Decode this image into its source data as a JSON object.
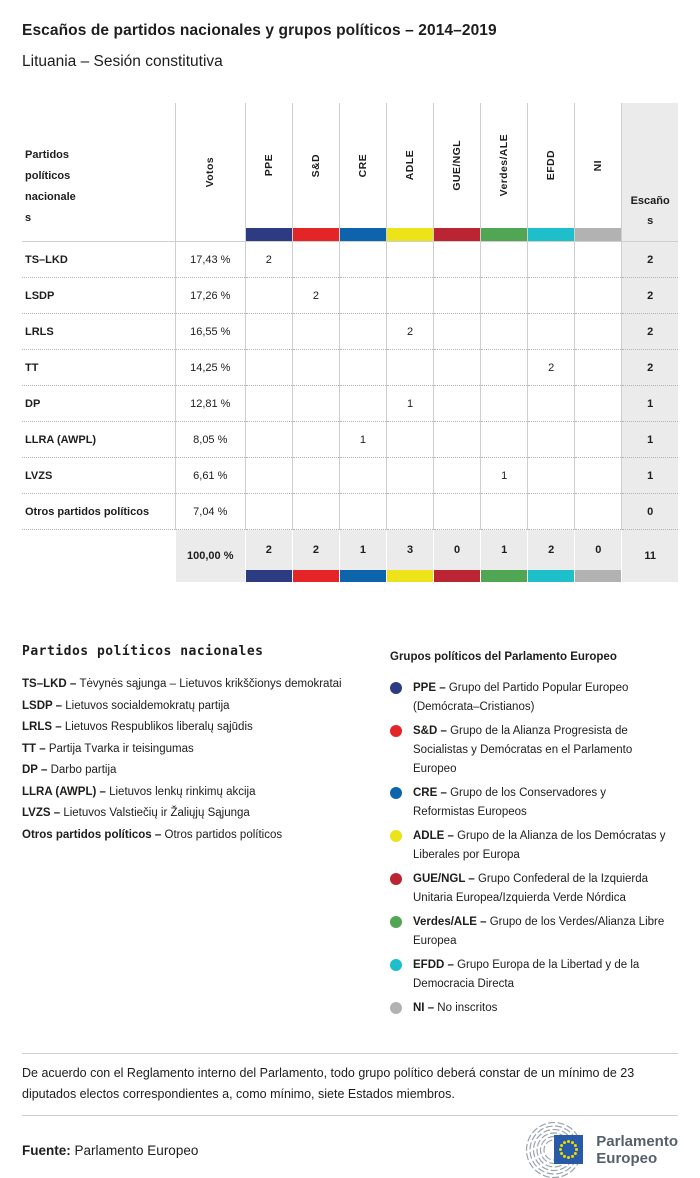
{
  "title": "Escaños de partidos nacionales y grupos políticos – 2014–2019",
  "subtitle": "Lituania – Sesión constitutiva",
  "table": {
    "col_party": "Partidos políticos nacionales",
    "col_votes": "Votos",
    "col_seats": "Escaños",
    "groups": [
      {
        "label": "PPE",
        "color": "#2d3b82"
      },
      {
        "label": "S&D",
        "color": "#e32528"
      },
      {
        "label": "CRE",
        "color": "#0e63ad"
      },
      {
        "label": "ADLE",
        "color": "#ece31b"
      },
      {
        "label": "GUE/NGL",
        "color": "#bb2432"
      },
      {
        "label": "Verdes/ALE",
        "color": "#50a653"
      },
      {
        "label": "EFDD",
        "color": "#1fbecb"
      },
      {
        "label": "NI",
        "color": "#b2b2b2"
      }
    ],
    "rows": [
      {
        "party": "TS–LKD",
        "votes": "17,43 %",
        "cells": [
          "2",
          "",
          "",
          "",
          "",
          "",
          "",
          ""
        ],
        "seats": "2"
      },
      {
        "party": "LSDP",
        "votes": "17,26 %",
        "cells": [
          "",
          "2",
          "",
          "",
          "",
          "",
          "",
          ""
        ],
        "seats": "2"
      },
      {
        "party": "LRLS",
        "votes": "16,55 %",
        "cells": [
          "",
          "",
          "",
          "2",
          "",
          "",
          "",
          ""
        ],
        "seats": "2"
      },
      {
        "party": "TT",
        "votes": "14,25 %",
        "cells": [
          "",
          "",
          "",
          "",
          "",
          "",
          "2",
          ""
        ],
        "seats": "2"
      },
      {
        "party": "DP",
        "votes": "12,81 %",
        "cells": [
          "",
          "",
          "",
          "1",
          "",
          "",
          "",
          ""
        ],
        "seats": "1"
      },
      {
        "party": "LLRA (AWPL)",
        "votes": "8,05 %",
        "cells": [
          "",
          "",
          "1",
          "",
          "",
          "",
          "",
          ""
        ],
        "seats": "1"
      },
      {
        "party": "LVZS",
        "votes": "6,61 %",
        "cells": [
          "",
          "",
          "",
          "",
          "",
          "1",
          "",
          ""
        ],
        "seats": "1"
      },
      {
        "party": "Otros partidos políticos",
        "votes": "7,04 %",
        "cells": [
          "",
          "",
          "",
          "",
          "",
          "",
          "",
          ""
        ],
        "seats": "0"
      }
    ],
    "total": {
      "votes": "100,00 %",
      "cells": [
        "2",
        "2",
        "1",
        "3",
        "0",
        "1",
        "2",
        "0"
      ],
      "seats": "11"
    }
  },
  "legend_parties": {
    "heading": "Partidos políticos nacionales",
    "items": [
      {
        "abbr": "TS–LKD",
        "name": "Tėvynės sąjunga – Lietuvos krikščionys demokratai"
      },
      {
        "abbr": "LSDP",
        "name": "Lietuvos socialdemokratų partija"
      },
      {
        "abbr": "LRLS",
        "name": "Lietuvos Respublikos liberalų sąjūdis"
      },
      {
        "abbr": "TT",
        "name": "Partija Tvarka ir teisingumas"
      },
      {
        "abbr": "DP",
        "name": "Darbo partija"
      },
      {
        "abbr": "LLRA (AWPL)",
        "name": "Lietuvos lenkų rinkimų akcija"
      },
      {
        "abbr": "LVZS",
        "name": "Lietuvos Valstiečių ir Žaliųjų Sąjunga"
      },
      {
        "abbr": "Otros partidos políticos",
        "name": "Otros partidos políticos"
      }
    ]
  },
  "legend_groups": {
    "heading": "Grupos políticos del Parlamento Europeo",
    "items": [
      {
        "abbr": "PPE",
        "name": "Grupo del Partido Popular Europeo (Demócrata–Cristianos)",
        "color": "#2d3b82"
      },
      {
        "abbr": "S&D",
        "name": "Grupo de la Alianza Progresista de Socialistas y Demócratas en el Parlamento Europeo",
        "color": "#e32528"
      },
      {
        "abbr": "CRE",
        "name": "Grupo de los Conservadores y Reformistas Europeos",
        "color": "#0e63ad"
      },
      {
        "abbr": "ADLE",
        "name": "Grupo de la Alianza de los Demócratas y Liberales por Europa",
        "color": "#ece31b"
      },
      {
        "abbr": "GUE/NGL",
        "name": "Grupo Confederal de la Izquierda Unitaria Europea/Izquierda Verde Nórdica",
        "color": "#bb2432"
      },
      {
        "abbr": "Verdes/ALE",
        "name": "Grupo de los Verdes/Alianza Libre Europea",
        "color": "#50a653"
      },
      {
        "abbr": "EFDD",
        "name": "Grupo Europa de la Libertad y de la Democracia Directa",
        "color": "#1fbecb"
      },
      {
        "abbr": "NI",
        "name": "No inscritos",
        "color": "#b2b2b2"
      }
    ]
  },
  "footnote": "De acuerdo con el Reglamento interno del Parlamento, todo grupo político deberá constar de un mínimo de 23 diputados electos correspondientes a, como mínimo, siete Estados miembros.",
  "source": {
    "label": "Fuente:",
    "value": "Parlamento Europeo"
  },
  "logo": {
    "line1": "Parlamento",
    "line2": "Europeo"
  },
  "chart_data": {
    "type": "table",
    "title": "Escaños de partidos nacionales y grupos políticos – 2014–2019",
    "subtitle": "Lituania – Sesión constitutiva",
    "columns": [
      "Partidos políticos nacionales",
      "Votos",
      "PPE",
      "S&D",
      "CRE",
      "ADLE",
      "GUE/NGL",
      "Verdes/ALE",
      "EFDD",
      "NI",
      "Escaños"
    ],
    "rows": [
      [
        "TS–LKD",
        "17,43 %",
        2,
        "",
        "",
        "",
        "",
        "",
        "",
        "",
        2
      ],
      [
        "LSDP",
        "17,26 %",
        "",
        2,
        "",
        "",
        "",
        "",
        "",
        "",
        2
      ],
      [
        "LRLS",
        "16,55 %",
        "",
        "",
        "",
        2,
        "",
        "",
        "",
        "",
        2
      ],
      [
        "TT",
        "14,25 %",
        "",
        "",
        "",
        "",
        "",
        "",
        2,
        "",
        2
      ],
      [
        "DP",
        "12,81 %",
        "",
        "",
        "",
        1,
        "",
        "",
        "",
        "",
        1
      ],
      [
        "LLRA (AWPL)",
        "8,05 %",
        "",
        "",
        1,
        "",
        "",
        "",
        "",
        "",
        1
      ],
      [
        "LVZS",
        "6,61 %",
        "",
        "",
        "",
        "",
        "",
        1,
        "",
        "",
        1
      ],
      [
        "Otros partidos políticos",
        "7,04 %",
        "",
        "",
        "",
        "",
        "",
        "",
        "",
        "",
        0
      ]
    ],
    "total": [
      "",
      "100,00 %",
      2,
      2,
      1,
      3,
      0,
      1,
      2,
      0,
      11
    ]
  }
}
